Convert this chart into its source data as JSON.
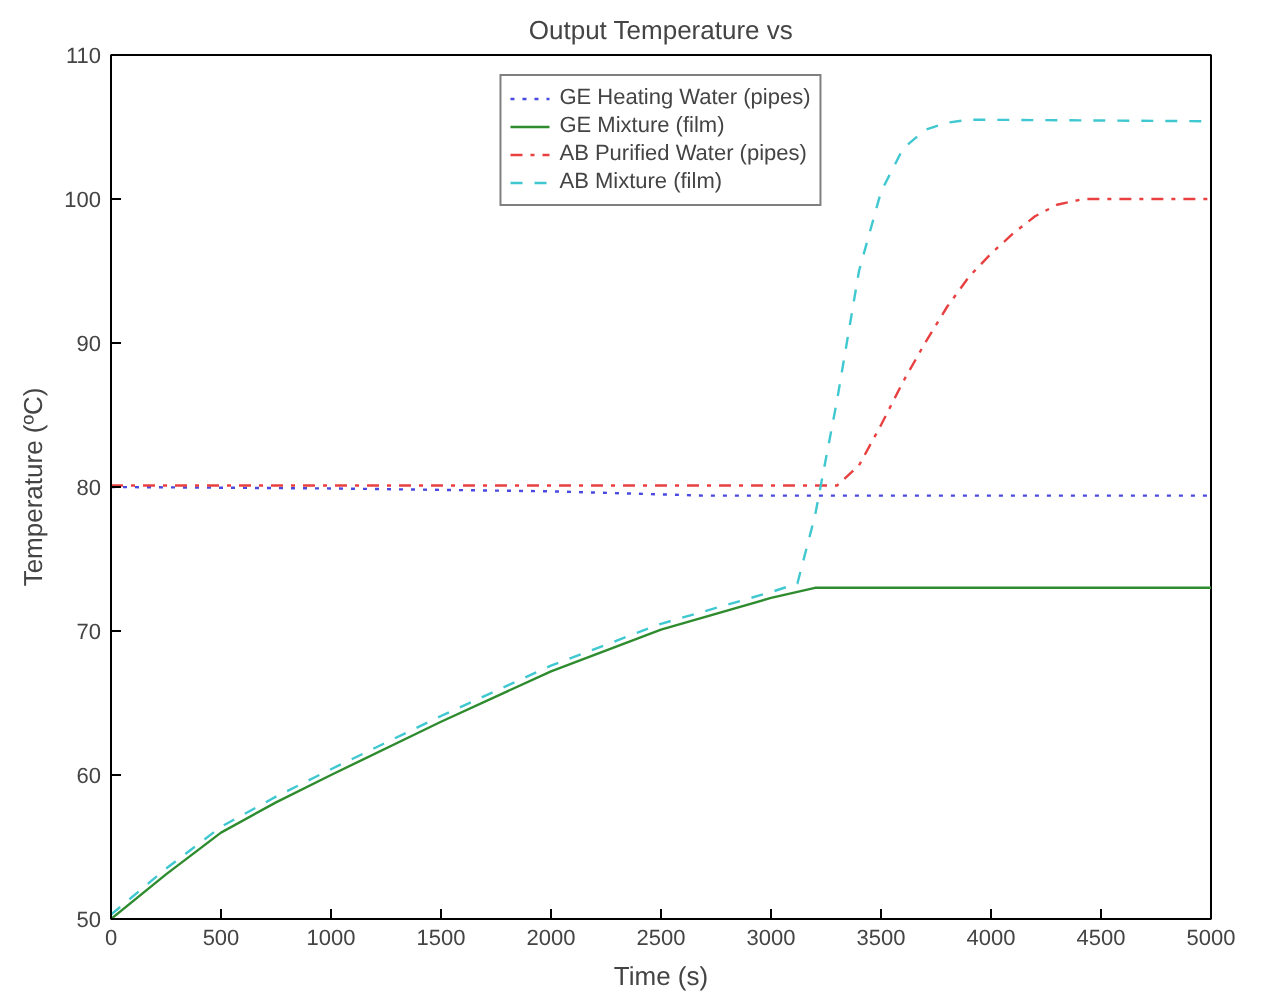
{
  "chart_data": {
    "type": "line",
    "title": "Output Temperature vs",
    "xlabel": "Time (s)",
    "ylabel": "Temperature (ºC)",
    "xlim": [
      0,
      5000
    ],
    "ylim": [
      50,
      110
    ],
    "xticks": [
      0,
      500,
      1000,
      1500,
      2000,
      2500,
      3000,
      3500,
      4000,
      4500,
      5000
    ],
    "yticks": [
      50,
      60,
      70,
      80,
      90,
      100,
      110
    ],
    "grid": false,
    "legend": "top",
    "marker": "none",
    "series": [
      {
        "name": "GE Heating Water (pipes)",
        "color": "#4a4ae0",
        "line_style": "dotted",
        "x": [
          0,
          1000,
          2000,
          2700,
          3500,
          5000
        ],
        "values": [
          80,
          79.9,
          79.7,
          79.4,
          79.4,
          79.4
        ]
      },
      {
        "name": "GE Mixture (film)",
        "color": "#2e8b2e",
        "line_style": "solid",
        "x": [
          0,
          250,
          500,
          750,
          1000,
          1500,
          2000,
          2500,
          3000,
          3200,
          4000,
          5000
        ],
        "values": [
          50,
          53.1,
          56,
          58.1,
          60,
          63.7,
          67.2,
          70.1,
          72.3,
          73,
          73,
          73
        ]
      },
      {
        "name": "AB Purified Water (pipes)",
        "color": "#e84040",
        "line_style": "dashdot",
        "x": [
          0,
          3300,
          3400,
          3500,
          3600,
          3700,
          3800,
          3900,
          4000,
          4100,
          4200,
          4300,
          4420,
          5000
        ],
        "values": [
          80.1,
          80.1,
          81.5,
          84.3,
          87.3,
          90,
          92.5,
          94.6,
          96.2,
          97.6,
          98.8,
          99.6,
          100,
          100
        ]
      },
      {
        "name": "AB Mixture (film)",
        "color": "#40c8d0",
        "line_style": "dashed",
        "x": [
          0,
          250,
          500,
          750,
          1000,
          1500,
          2000,
          2500,
          3000,
          3120,
          3200,
          3300,
          3400,
          3500,
          3600,
          3700,
          3800,
          3900,
          4000,
          5000
        ],
        "values": [
          50.3,
          53.5,
          56.4,
          58.5,
          60.4,
          64.1,
          67.6,
          70.5,
          72.7,
          73.3,
          78,
          86,
          95,
          100.5,
          103.5,
          104.8,
          105.3,
          105.5,
          105.5,
          105.4
        ]
      }
    ]
  }
}
